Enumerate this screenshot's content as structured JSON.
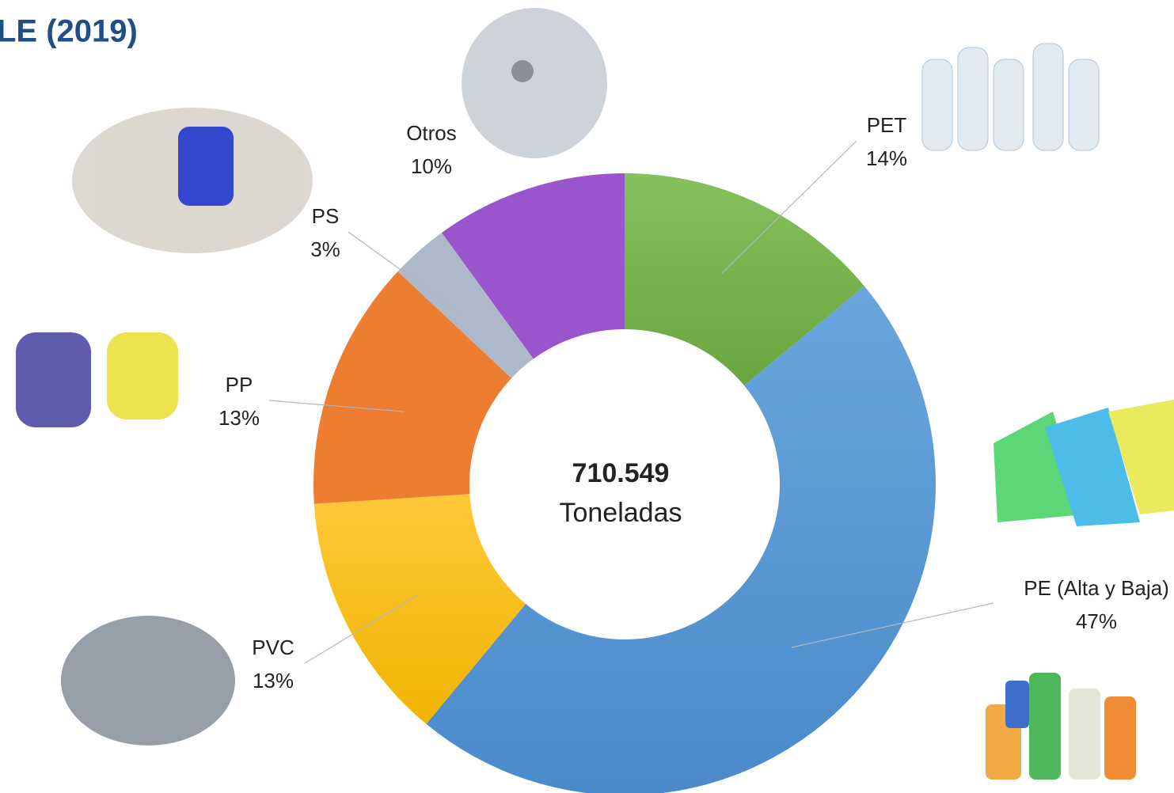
{
  "chart_data": {
    "type": "donut",
    "title": "LE (2019)",
    "categories": [
      "PET",
      "PE (Alta y Baja)",
      "PVC",
      "PP",
      "PS",
      "Otros"
    ],
    "values": [
      14,
      47,
      13,
      13,
      3,
      10
    ],
    "value_labels": [
      "14%",
      "47%",
      "13%",
      "13%",
      "3%",
      "10%"
    ],
    "colors": [
      "#70ad47",
      "#5b9bd5",
      "#ffc000",
      "#ed7d31",
      "#adb9ca",
      "#9b55cc"
    ],
    "center_value": "710.549",
    "center_label": "Toneladas"
  }
}
